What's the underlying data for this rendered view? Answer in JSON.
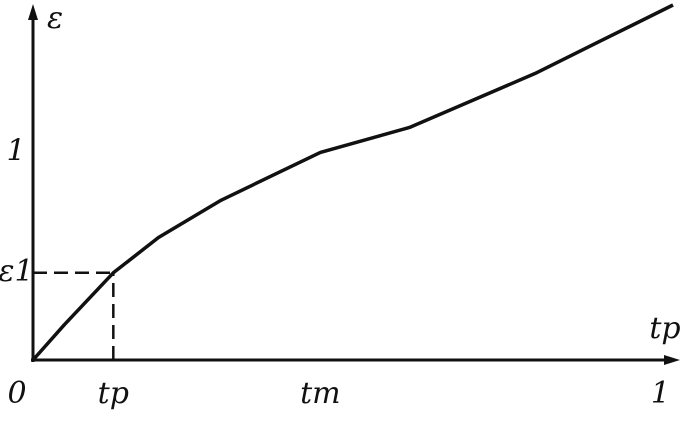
{
  "chart_data": {
    "type": "line",
    "x_label": "tp",
    "y_label": "ε",
    "x": [
      0,
      0.05,
      0.128,
      0.2,
      0.3,
      0.458,
      0.6,
      0.8,
      0.9,
      1.02
    ],
    "series": [
      {
        "color": "#111111",
        "values": [
          0,
          0.17,
          0.42,
          0.59,
          0.77,
          1.0,
          1.12,
          1.38,
          1.53,
          1.71
        ]
      }
    ],
    "xlim": [
      0,
      1.02
    ],
    "ylim": [
      0,
      1.71
    ],
    "xticks": [
      0,
      {
        "value": 0.128,
        "label": "tp"
      },
      {
        "value": 0.458,
        "label": "tm"
      },
      1
    ],
    "yticks": [
      0,
      {
        "value": 0.42,
        "label": "ε1"
      },
      1
    ]
  }
}
